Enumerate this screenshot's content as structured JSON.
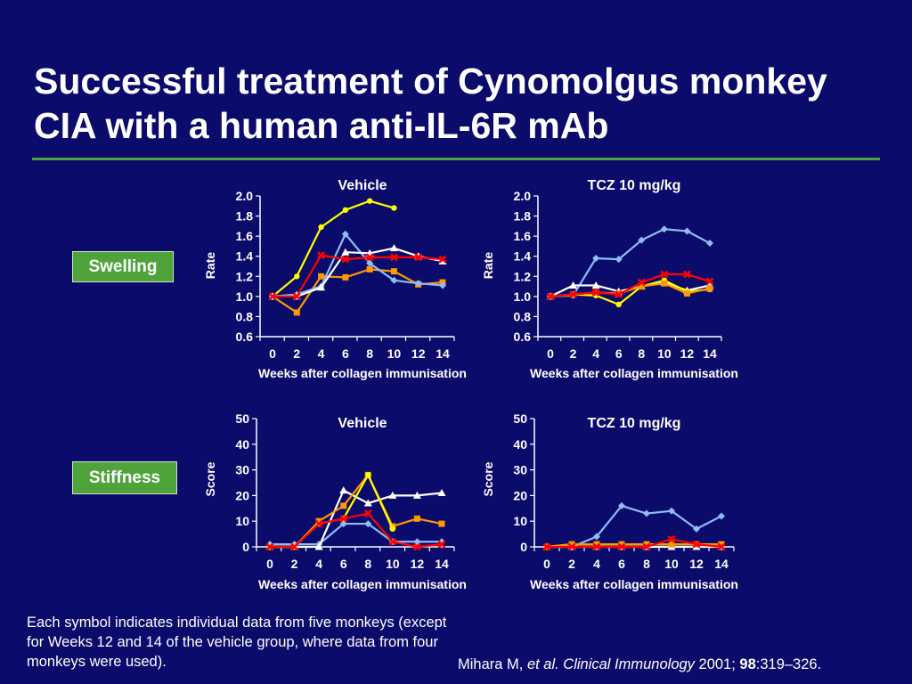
{
  "slide": {
    "title": "Successful treatment of Cynomolgus monkey CIA with a human anti-IL-6R mAb",
    "row_labels": {
      "swelling": "Swelling",
      "stiffness": "Stiffness"
    },
    "footnote": "Each symbol indicates individual data from five monkeys (except for Weeks 12 and 14 of the vehicle group, where data from four monkeys were used).",
    "citation": {
      "author": "Mihara M, ",
      "etal_journal": "et al. Clinical Immunology",
      "year": " 2001; ",
      "volume": "98",
      "pages": ":319–326."
    },
    "colors": {
      "background": "#0b0b6b",
      "accent_green": "#4fa33a"
    }
  },
  "chart_data": [
    {
      "id": "swelling-vehicle",
      "type": "line",
      "title": "Vehicle",
      "xlabel": "Weeks after collagen immunisation",
      "ylabel": "Rate",
      "ylim": [
        0.6,
        2.0
      ],
      "yticks": [
        "0.6",
        "0.8",
        "1.0",
        "1.2",
        "1.4",
        "1.6",
        "1.8",
        "2.0"
      ],
      "xticks": [
        "0",
        "2",
        "4",
        "6",
        "8",
        "10",
        "12",
        "14"
      ],
      "series": [
        {
          "color": "#ffff00",
          "marker": "circle",
          "x": [
            0,
            2,
            4,
            6,
            8,
            10
          ],
          "values": [
            1.0,
            1.2,
            1.69,
            1.86,
            1.95,
            1.88
          ]
        },
        {
          "color": "#ff9900",
          "marker": "square",
          "x": [
            0,
            2,
            4,
            6,
            8,
            10,
            12,
            14
          ],
          "values": [
            1.0,
            0.84,
            1.2,
            1.19,
            1.27,
            1.25,
            1.12,
            1.14
          ]
        },
        {
          "color": "#8fbcf5",
          "marker": "diamond",
          "x": [
            0,
            2,
            4,
            6,
            8,
            10,
            12,
            14
          ],
          "values": [
            1.0,
            1.02,
            1.1,
            1.62,
            1.33,
            1.16,
            1.13,
            1.11
          ]
        },
        {
          "color": "#ffffff",
          "marker": "triangle",
          "x": [
            0,
            2,
            4,
            6,
            8,
            10,
            12,
            14
          ],
          "values": [
            1.0,
            1.0,
            1.09,
            1.44,
            1.43,
            1.48,
            1.4,
            1.35
          ]
        },
        {
          "color": "#ff0000",
          "marker": "cross",
          "x": [
            0,
            2,
            4,
            6,
            8,
            10,
            12,
            14
          ],
          "values": [
            1.0,
            1.0,
            1.41,
            1.37,
            1.39,
            1.39,
            1.39,
            1.37
          ]
        }
      ]
    },
    {
      "id": "swelling-tcz",
      "type": "line",
      "title": "TCZ 10 mg/kg",
      "xlabel": "Weeks after collagen immunisation",
      "ylabel": "Rate",
      "ylim": [
        0.6,
        2.0
      ],
      "yticks": [
        "0.6",
        "0.8",
        "1.0",
        "1.2",
        "1.4",
        "1.6",
        "1.8",
        "2.0"
      ],
      "xticks": [
        "0",
        "2",
        "4",
        "6",
        "8",
        "10",
        "12",
        "14"
      ],
      "series": [
        {
          "color": "#8fbcf5",
          "marker": "diamond",
          "x": [
            0,
            2,
            4,
            6,
            8,
            10,
            12,
            14
          ],
          "values": [
            1.0,
            1.01,
            1.38,
            1.37,
            1.56,
            1.67,
            1.65,
            1.53
          ]
        },
        {
          "color": "#ffffff",
          "marker": "triangle",
          "x": [
            0,
            2,
            4,
            6,
            8,
            10,
            12,
            14
          ],
          "values": [
            1.0,
            1.11,
            1.11,
            1.05,
            1.1,
            1.14,
            1.06,
            1.11
          ]
        },
        {
          "color": "#ffff00",
          "marker": "circle",
          "x": [
            0,
            2,
            4,
            6,
            8,
            10,
            12,
            14
          ],
          "values": [
            1.0,
            1.02,
            1.01,
            0.92,
            1.1,
            1.16,
            1.05,
            1.07
          ]
        },
        {
          "color": "#ff9900",
          "marker": "square",
          "x": [
            0,
            2,
            4,
            6,
            8,
            10,
            12,
            14
          ],
          "values": [
            1.0,
            1.02,
            1.04,
            1.03,
            1.1,
            1.13,
            1.03,
            1.08
          ]
        },
        {
          "color": "#ff0000",
          "marker": "cross",
          "x": [
            0,
            2,
            4,
            6,
            8,
            10,
            12,
            14
          ],
          "values": [
            1.0,
            1.02,
            1.04,
            1.02,
            1.14,
            1.22,
            1.22,
            1.15
          ]
        }
      ]
    },
    {
      "id": "stiffness-vehicle",
      "type": "line",
      "title": "Vehicle",
      "xlabel": "Weeks after collagen immunisation",
      "ylabel": "Score",
      "ylim": [
        0,
        50
      ],
      "yticks": [
        "0",
        "10",
        "20",
        "30",
        "40",
        "50"
      ],
      "xticks": [
        "0",
        "2",
        "4",
        "6",
        "8",
        "10",
        "12",
        "14"
      ],
      "series": [
        {
          "color": "#8fbcf5",
          "marker": "diamond",
          "x": [
            0,
            2,
            4,
            6,
            8,
            10,
            12,
            14
          ],
          "values": [
            1,
            1,
            1,
            9,
            9,
            2,
            2,
            2
          ]
        },
        {
          "color": "#ffffff",
          "marker": "triangle",
          "x": [
            0,
            2,
            4,
            6,
            8,
            10,
            12,
            14
          ],
          "values": [
            0,
            0,
            0,
            22,
            17,
            20,
            20,
            21
          ]
        },
        {
          "color": "#ff9900",
          "marker": "square",
          "x": [
            0,
            2,
            4,
            6,
            8,
            10,
            12,
            14
          ],
          "values": [
            0,
            0,
            10,
            16,
            28,
            8,
            11,
            9
          ]
        },
        {
          "color": "#ffff00",
          "marker": "circle",
          "x": [
            0,
            2,
            4,
            6,
            8,
            10
          ],
          "values": [
            0,
            0,
            9,
            11,
            28,
            7
          ]
        },
        {
          "color": "#ff0000",
          "marker": "cross",
          "x": [
            0,
            2,
            4,
            6,
            8,
            10,
            12,
            14
          ],
          "values": [
            0,
            0,
            9,
            11,
            13,
            2,
            0,
            1
          ]
        }
      ]
    },
    {
      "id": "stiffness-tcz",
      "type": "line",
      "title": "TCZ 10 mg/kg",
      "xlabel": "Weeks after collagen immunisation",
      "ylabel": "Score",
      "ylim": [
        0,
        50
      ],
      "yticks": [
        "0",
        "10",
        "20",
        "30",
        "40",
        "50"
      ],
      "xticks": [
        "0",
        "2",
        "4",
        "6",
        "8",
        "10",
        "12",
        "14"
      ],
      "series": [
        {
          "color": "#8fbcf5",
          "marker": "diamond",
          "x": [
            0,
            2,
            4,
            6,
            8,
            10,
            12,
            14
          ],
          "values": [
            0,
            0,
            4,
            16,
            13,
            14,
            7,
            12
          ]
        },
        {
          "color": "#ffffff",
          "marker": "triangle",
          "x": [
            0,
            2,
            4,
            6,
            8,
            10,
            12,
            14
          ],
          "values": [
            0,
            0,
            0,
            0,
            0,
            0,
            0,
            0
          ]
        },
        {
          "color": "#ffff00",
          "marker": "circle",
          "x": [
            0,
            2,
            4,
            6,
            8,
            10,
            12,
            14
          ],
          "values": [
            0,
            1,
            1,
            1,
            1,
            1,
            1,
            1
          ]
        },
        {
          "color": "#ff9900",
          "marker": "square",
          "x": [
            0,
            2,
            4,
            6,
            8,
            10,
            12,
            14
          ],
          "values": [
            0,
            1,
            1,
            1,
            1,
            1,
            1,
            1
          ]
        },
        {
          "color": "#ff0000",
          "marker": "cross",
          "x": [
            0,
            2,
            4,
            6,
            8,
            10,
            12,
            14
          ],
          "values": [
            0,
            0,
            0,
            0,
            0,
            3,
            1,
            0
          ]
        }
      ]
    }
  ]
}
